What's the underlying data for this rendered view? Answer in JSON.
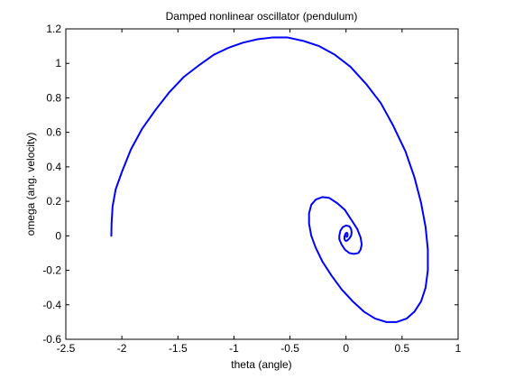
{
  "chart_data": {
    "type": "line",
    "title": "Damped nonlinear oscillator (pendulum)",
    "xlabel": "theta (angle)",
    "ylabel": "omega (ang. velocity)",
    "xlim": [
      -2.5,
      1
    ],
    "ylim": [
      -0.6,
      1.2
    ],
    "xticks": [
      -2.5,
      -2,
      -1.5,
      -1,
      -0.5,
      0,
      0.5,
      1
    ],
    "yticks": [
      -0.6,
      -0.4,
      -0.2,
      0,
      0.2,
      0.4,
      0.6,
      0.8,
      1,
      1.2
    ],
    "xtick_labels": [
      "-2.5",
      "-2",
      "-1.5",
      "-1",
      "-0.5",
      "0",
      "0.5",
      "1"
    ],
    "ytick_labels": [
      "-0.6",
      "-0.4",
      "-0.2",
      "0",
      "0.2",
      "0.4",
      "0.6",
      "0.8",
      "1",
      "1.2"
    ],
    "grid": false,
    "line_color": "#0000ff",
    "series": [
      {
        "name": "",
        "x": [
          -2.094,
          -2.092,
          -2.083,
          -2.055,
          -2.0,
          -1.92,
          -1.82,
          -1.7,
          -1.58,
          -1.45,
          -1.31,
          -1.18,
          -1.05,
          -0.92,
          -0.79,
          -0.66,
          -0.52,
          -0.38,
          -0.24,
          -0.1,
          0.04,
          0.18,
          0.31,
          0.42,
          0.53,
          0.61,
          0.67,
          0.71,
          0.73,
          0.73,
          0.71,
          0.67,
          0.61,
          0.54,
          0.45,
          0.36,
          0.26,
          0.16,
          0.06,
          -0.04,
          -0.13,
          -0.21,
          -0.27,
          -0.31,
          -0.33,
          -0.33,
          -0.31,
          -0.27,
          -0.21,
          -0.15,
          -0.08,
          -0.01,
          0.05,
          0.1,
          0.13,
          0.14,
          0.13,
          0.11,
          0.07,
          0.03,
          -0.01,
          -0.04,
          -0.06,
          -0.06,
          -0.05,
          -0.03,
          0.0,
          0.03,
          0.045,
          0.05,
          0.045,
          0.03,
          0.015,
          0.0,
          -0.01,
          -0.015,
          -0.012,
          -0.005,
          0.004,
          0.012,
          0.015,
          0.012,
          0.006,
          0.0
        ],
        "y": [
          0.0,
          0.07,
          0.17,
          0.27,
          0.37,
          0.5,
          0.62,
          0.73,
          0.83,
          0.92,
          0.99,
          1.05,
          1.09,
          1.12,
          1.14,
          1.15,
          1.15,
          1.13,
          1.1,
          1.05,
          0.98,
          0.88,
          0.77,
          0.64,
          0.49,
          0.34,
          0.19,
          0.05,
          -0.08,
          -0.2,
          -0.3,
          -0.38,
          -0.44,
          -0.48,
          -0.5,
          -0.5,
          -0.48,
          -0.44,
          -0.38,
          -0.31,
          -0.23,
          -0.15,
          -0.07,
          0.0,
          0.07,
          0.13,
          0.18,
          0.21,
          0.225,
          0.22,
          0.19,
          0.15,
          0.09,
          0.04,
          -0.01,
          -0.05,
          -0.08,
          -0.1,
          -0.105,
          -0.1,
          -0.08,
          -0.05,
          -0.02,
          0.0,
          0.03,
          0.05,
          0.06,
          0.055,
          0.04,
          0.02,
          0.0,
          -0.015,
          -0.025,
          -0.03,
          -0.025,
          -0.015,
          0.0,
          0.012,
          0.018,
          0.015,
          0.005,
          -0.003,
          -0.006,
          0.0
        ]
      }
    ]
  }
}
